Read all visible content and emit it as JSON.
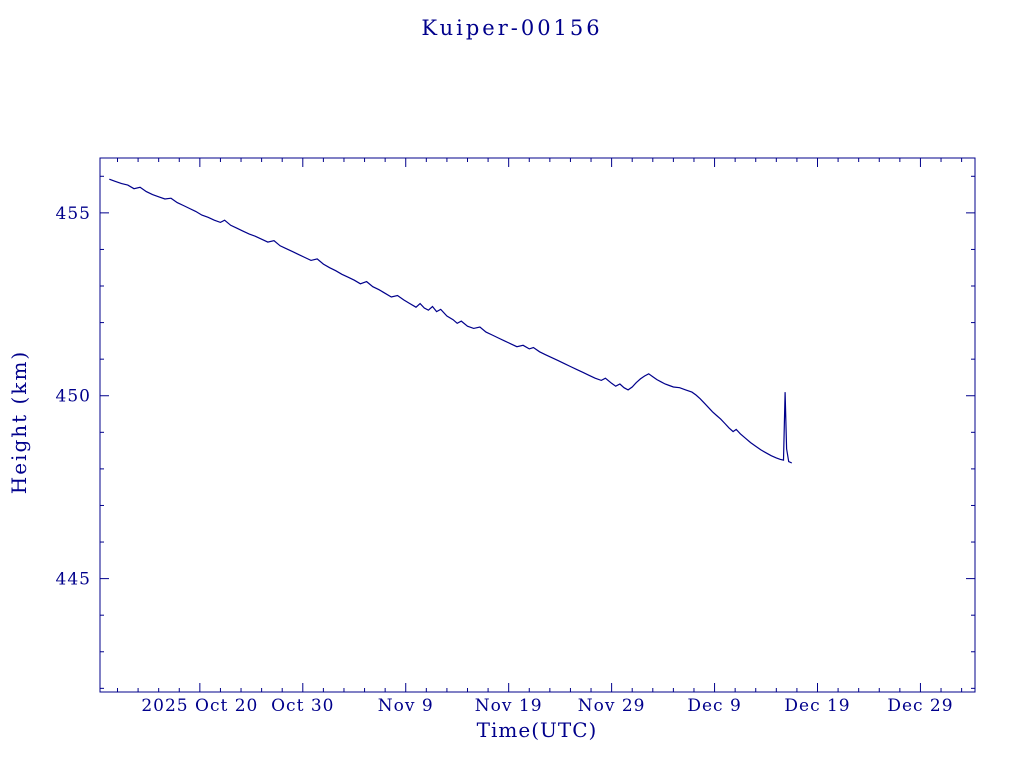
{
  "chart_data": {
    "type": "line",
    "title": "Kuiper-00156",
    "xlabel": "Time(UTC)",
    "ylabel": "Height (km)",
    "line_color": "#00008B",
    "axis_color": "#00008B",
    "background": "#ffffff",
    "grid": false,
    "legend": "none",
    "x_unit": "days since 2025-10-01 (day 0 = Oct 1, 2025)",
    "xlim": [
      9.3,
      94.3
    ],
    "ylim": [
      441.9,
      456.5
    ],
    "x_major_ticks": [
      {
        "day": 19,
        "label": "2025 Oct 20"
      },
      {
        "day": 29,
        "label": "Oct 30"
      },
      {
        "day": 39,
        "label": "Nov  9"
      },
      {
        "day": 49,
        "label": "Nov 19"
      },
      {
        "day": 59,
        "label": "Nov 29"
      },
      {
        "day": 69,
        "label": "Dec  9"
      },
      {
        "day": 79,
        "label": "Dec 19"
      },
      {
        "day": 89,
        "label": "Dec 29"
      }
    ],
    "x_minor_step": 2,
    "x_minor_start": 11,
    "y_major_ticks": [
      {
        "value": 445,
        "label": "445"
      },
      {
        "value": 450,
        "label": "450"
      },
      {
        "value": 455,
        "label": "455"
      }
    ],
    "y_minor_step": 1,
    "series": [
      {
        "name": "height",
        "points": [
          [
            10.2,
            455.92
          ],
          [
            10.8,
            455.86
          ],
          [
            11.4,
            455.8
          ],
          [
            12.0,
            455.76
          ],
          [
            12.6,
            455.66
          ],
          [
            13.2,
            455.7
          ],
          [
            13.8,
            455.58
          ],
          [
            14.4,
            455.5
          ],
          [
            15.0,
            455.44
          ],
          [
            15.6,
            455.38
          ],
          [
            16.2,
            455.4
          ],
          [
            16.8,
            455.28
          ],
          [
            17.4,
            455.2
          ],
          [
            18.0,
            455.12
          ],
          [
            18.6,
            455.04
          ],
          [
            19.2,
            454.94
          ],
          [
            19.8,
            454.88
          ],
          [
            20.4,
            454.8
          ],
          [
            21.0,
            454.74
          ],
          [
            21.4,
            454.8
          ],
          [
            22.0,
            454.66
          ],
          [
            22.6,
            454.58
          ],
          [
            23.2,
            454.5
          ],
          [
            23.8,
            454.42
          ],
          [
            24.4,
            454.36
          ],
          [
            25.0,
            454.28
          ],
          [
            25.6,
            454.2
          ],
          [
            26.2,
            454.24
          ],
          [
            26.8,
            454.1
          ],
          [
            27.4,
            454.02
          ],
          [
            28.0,
            453.94
          ],
          [
            28.6,
            453.86
          ],
          [
            29.2,
            453.78
          ],
          [
            29.8,
            453.7
          ],
          [
            30.4,
            453.74
          ],
          [
            31.0,
            453.6
          ],
          [
            31.6,
            453.5
          ],
          [
            32.2,
            453.42
          ],
          [
            32.8,
            453.32
          ],
          [
            33.4,
            453.24
          ],
          [
            34.0,
            453.16
          ],
          [
            34.6,
            453.06
          ],
          [
            35.2,
            453.12
          ],
          [
            35.8,
            452.98
          ],
          [
            36.4,
            452.9
          ],
          [
            37.0,
            452.8
          ],
          [
            37.6,
            452.7
          ],
          [
            38.2,
            452.74
          ],
          [
            38.8,
            452.62
          ],
          [
            39.4,
            452.52
          ],
          [
            40.0,
            452.42
          ],
          [
            40.4,
            452.52
          ],
          [
            40.8,
            452.4
          ],
          [
            41.2,
            452.34
          ],
          [
            41.6,
            452.44
          ],
          [
            42.0,
            452.3
          ],
          [
            42.4,
            452.36
          ],
          [
            43.0,
            452.18
          ],
          [
            43.6,
            452.08
          ],
          [
            44.0,
            451.98
          ],
          [
            44.4,
            452.04
          ],
          [
            45.0,
            451.9
          ],
          [
            45.6,
            451.84
          ],
          [
            46.2,
            451.88
          ],
          [
            46.8,
            451.74
          ],
          [
            47.4,
            451.66
          ],
          [
            48.0,
            451.58
          ],
          [
            48.6,
            451.5
          ],
          [
            49.2,
            451.42
          ],
          [
            49.8,
            451.34
          ],
          [
            50.4,
            451.38
          ],
          [
            51.0,
            451.28
          ],
          [
            51.4,
            451.32
          ],
          [
            52.0,
            451.2
          ],
          [
            52.6,
            451.12
          ],
          [
            53.2,
            451.04
          ],
          [
            53.8,
            450.96
          ],
          [
            54.4,
            450.88
          ],
          [
            55.0,
            450.8
          ],
          [
            55.6,
            450.72
          ],
          [
            56.2,
            450.64
          ],
          [
            56.8,
            450.56
          ],
          [
            57.4,
            450.48
          ],
          [
            58.0,
            450.42
          ],
          [
            58.4,
            450.48
          ],
          [
            59.0,
            450.34
          ],
          [
            59.4,
            450.26
          ],
          [
            59.8,
            450.32
          ],
          [
            60.2,
            450.22
          ],
          [
            60.6,
            450.16
          ],
          [
            61.0,
            450.24
          ],
          [
            61.4,
            450.36
          ],
          [
            61.8,
            450.46
          ],
          [
            62.2,
            450.54
          ],
          [
            62.6,
            450.6
          ],
          [
            63.0,
            450.52
          ],
          [
            63.4,
            450.44
          ],
          [
            63.8,
            450.38
          ],
          [
            64.2,
            450.32
          ],
          [
            64.6,
            450.28
          ],
          [
            65.0,
            450.24
          ],
          [
            65.6,
            450.22
          ],
          [
            66.2,
            450.16
          ],
          [
            66.8,
            450.1
          ],
          [
            67.2,
            450.02
          ],
          [
            67.6,
            449.92
          ],
          [
            68.0,
            449.8
          ],
          [
            68.4,
            449.68
          ],
          [
            68.8,
            449.56
          ],
          [
            69.2,
            449.46
          ],
          [
            69.6,
            449.36
          ],
          [
            70.0,
            449.24
          ],
          [
            70.4,
            449.12
          ],
          [
            70.8,
            449.02
          ],
          [
            71.1,
            449.08
          ],
          [
            71.5,
            448.96
          ],
          [
            72.0,
            448.84
          ],
          [
            72.5,
            448.72
          ],
          [
            73.0,
            448.62
          ],
          [
            73.5,
            448.52
          ],
          [
            74.0,
            448.44
          ],
          [
            74.5,
            448.36
          ],
          [
            75.0,
            448.3
          ],
          [
            75.4,
            448.26
          ],
          [
            75.7,
            448.24
          ],
          [
            75.85,
            450.1
          ],
          [
            76.0,
            448.55
          ],
          [
            76.2,
            448.2
          ],
          [
            76.5,
            448.16
          ]
        ]
      }
    ]
  }
}
